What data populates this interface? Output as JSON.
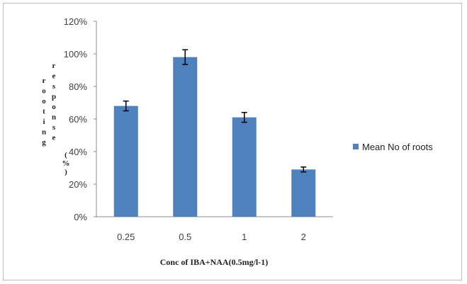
{
  "chart_data": {
    "type": "bar",
    "categories": [
      "0.25",
      "0.5",
      "1",
      "2"
    ],
    "series": [
      {
        "name": "Mean No of roots",
        "values": [
          68,
          98,
          61,
          29
        ],
        "errors": [
          3,
          4.5,
          3,
          1.5
        ],
        "color": "#4F81BD"
      }
    ],
    "ylim": [
      0,
      120
    ],
    "yticks": [
      "0%",
      "20%",
      "40%",
      "60%",
      "80%",
      "100%",
      "120%"
    ],
    "y_unit": "%",
    "xlabel": "Conc of IBA+NAA(0.5mg/l-1)",
    "ylabel": "rooting response(%)",
    "ylabel_parts": [
      "r o o t i n g",
      "r e s p o n s e",
      "( % )"
    ],
    "grid": false,
    "legend_position": "right"
  }
}
